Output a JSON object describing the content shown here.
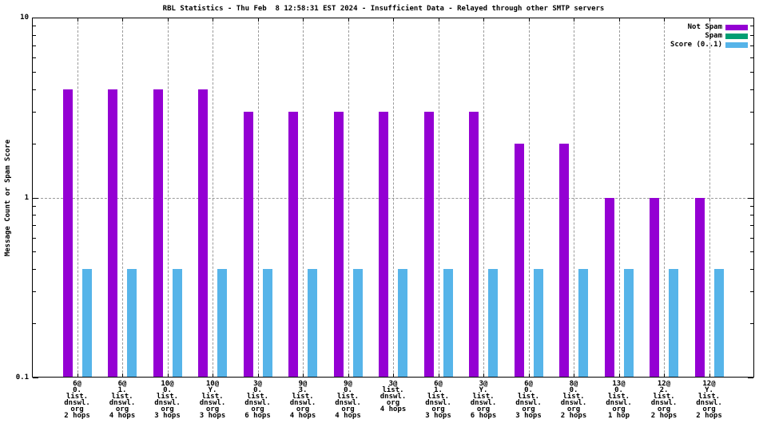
{
  "chart_data": {
    "type": "bar",
    "title": "RBL Statistics - Thu Feb  8 12:58:31 EST 2024 - Insufficient Data - Relayed through other SMTP servers",
    "ylabel": "Message Count or Spam Score",
    "yscale": "log",
    "ylim": [
      0.1,
      10
    ],
    "grid": "dashed gridline at y=1 and at every category center",
    "legend_position": "top-right-inside",
    "yticks": [
      {
        "label": "10",
        "value": 10
      },
      {
        "label": "1",
        "value": 1
      },
      {
        "label": "0.1",
        "value": 0.1
      }
    ],
    "legend": [
      {
        "label": "Not Spam",
        "color": "#9400D3"
      },
      {
        "label": "Spam",
        "color": "#009E73"
      },
      {
        "label": "Score (0..1)",
        "color": "#56B4E9"
      }
    ],
    "categories": [
      [
        "6@",
        "0.",
        "list.",
        "dnswl.",
        "org",
        "2 hops"
      ],
      [
        "6@",
        "1.",
        "list.",
        "dnswl.",
        "org",
        "4 hops"
      ],
      [
        "10@",
        "0.",
        "list.",
        "dnswl.",
        "org",
        "3 hops"
      ],
      [
        "10@",
        "Y.",
        "list.",
        "dnswl.",
        "org",
        "3 hops"
      ],
      [
        "3@",
        "0.",
        "list.",
        "dnswl.",
        "org",
        "6 hops"
      ],
      [
        "9@",
        "3.",
        "list.",
        "dnswl.",
        "org",
        "4 hops"
      ],
      [
        "9@",
        "0.",
        "list.",
        "dnswl.",
        "org",
        "4 hops"
      ],
      [
        "3@",
        "list.",
        "dnswl.",
        "org",
        "4 hops"
      ],
      [
        "6@",
        "1.",
        "list.",
        "dnswl.",
        "org",
        "3 hops"
      ],
      [
        "3@",
        "Y.",
        "list.",
        "dnswl.",
        "org",
        "6 hops"
      ],
      [
        "6@",
        "0.",
        "list.",
        "dnswl.",
        "org",
        "3 hops"
      ],
      [
        "8@",
        "0.",
        "list.",
        "dnswl.",
        "org",
        "2 hops"
      ],
      [
        "13@",
        "0.",
        "list.",
        "dnswl.",
        "org",
        "1 hop"
      ],
      [
        "12@",
        "2.",
        "list.",
        "dnswl.",
        "org",
        "2 hops"
      ],
      [
        "12@",
        "Y.",
        "list.",
        "dnswl.",
        "org",
        "2 hops"
      ]
    ],
    "series": [
      {
        "name": "Not Spam",
        "color": "#9400D3",
        "values": [
          4,
          4,
          4,
          4,
          3,
          3,
          3,
          3,
          3,
          3,
          2,
          2,
          1,
          1,
          1
        ]
      },
      {
        "name": "Spam",
        "color": "#009E73",
        "values": [
          0,
          0,
          0,
          0,
          0,
          0,
          0,
          0,
          0,
          0,
          0,
          0,
          0,
          0,
          0
        ]
      },
      {
        "name": "Score (0..1)",
        "color": "#56B4E9",
        "values": [
          0.4,
          0.4,
          0.4,
          0.4,
          0.4,
          0.4,
          0.4,
          0.4,
          0.4,
          0.4,
          0.4,
          0.4,
          0.4,
          0.4,
          0.4
        ]
      }
    ]
  }
}
